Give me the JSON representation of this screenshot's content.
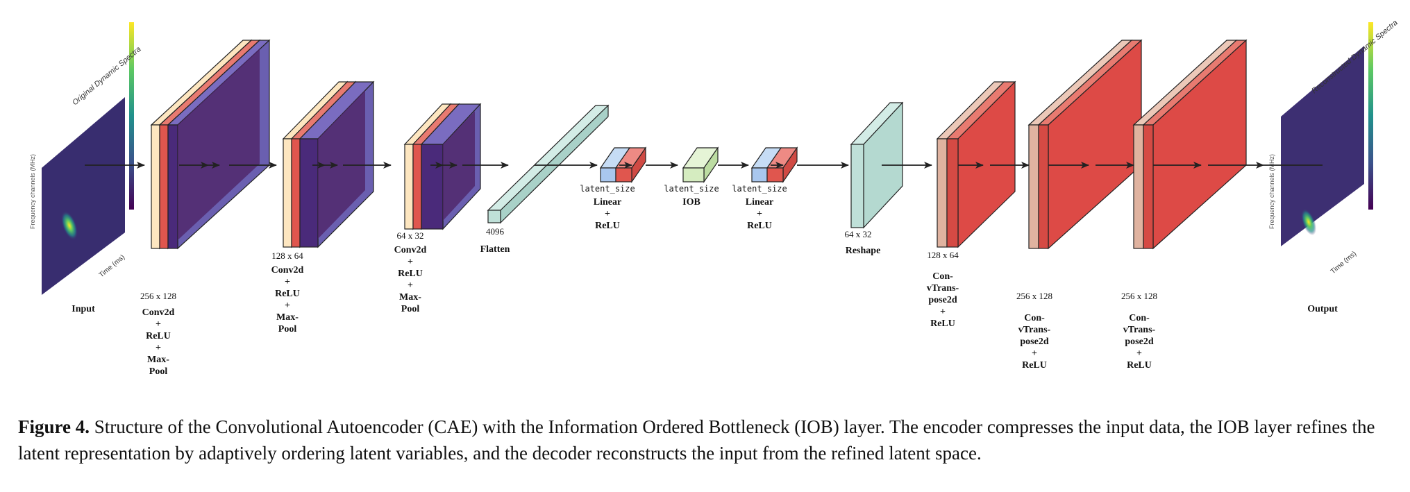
{
  "input": {
    "label": "Input",
    "plot_title": "Original Dynamic Spectra",
    "xlabel": "Time (ms)",
    "ylabel": "Frequency channels (MHz)"
  },
  "output": {
    "label": "Output",
    "plot_title": "Reconstructed Dynamic Spectra",
    "xlabel": "Time (ms)",
    "ylabel": "Frequency channels (MHz)"
  },
  "encoder": [
    {
      "dim": "256 x 128",
      "lines": [
        "Conv2d",
        "+",
        "ReLU",
        "+",
        "Max-",
        "Pool"
      ]
    },
    {
      "dim": "128 x 64",
      "lines": [
        "Conv2d",
        "+",
        "ReLU",
        "+",
        "Max-",
        "Pool"
      ]
    },
    {
      "dim": "64 x 32",
      "lines": [
        "Conv2d",
        "+",
        "ReLU",
        "+",
        "Max-",
        "Pool"
      ]
    }
  ],
  "flatten": {
    "dim": "4096",
    "label": "Flatten"
  },
  "bottleneck": [
    {
      "size": "latent_size",
      "lines": [
        "Linear",
        "+",
        "ReLU"
      ]
    },
    {
      "size": "latent_size",
      "lines": [
        "IOB"
      ]
    },
    {
      "size": "latent_size",
      "lines": [
        "Linear",
        "+",
        "ReLU"
      ]
    }
  ],
  "reshape": {
    "dim": "64 x 32",
    "label": "Reshape"
  },
  "decoder": [
    {
      "dim": "128 x 64",
      "lines": [
        "Con-",
        "vTrans-",
        "pose2d",
        "+",
        "ReLU"
      ]
    },
    {
      "dim": "256 x 128",
      "lines": [
        "Con-",
        "vTrans-",
        "pose2d",
        "+",
        "ReLU"
      ]
    },
    {
      "dim": "256 x 128",
      "lines": [
        "Con-",
        "vTrans-",
        "pose2d",
        "+",
        "ReLU"
      ]
    }
  ],
  "caption": {
    "figure": "Figure 4.",
    "text": "Structure of the Convolutional Autoencoder (CAE) with the Information Ordered Bottleneck (IOB) layer. The encoder compresses the input data, the IOB layer refines the latent representation by adaptively ordering latent variables, and the decoder reconstructs the input from the refined latent space."
  },
  "colors": {
    "conv_light": "#fde6c0",
    "conv_red": "#e0564e",
    "conv_purple": "#4a2a7a",
    "conv_purple_side": "#6a5fb0",
    "linear_blue": "#a9c7ee",
    "iob_green": "#d5ecc0",
    "flatten_teal": "#bfe0d8",
    "deconv_tan": "#e0b3a0",
    "deconv_red": "#dd4a46",
    "spectra_bg": "#3d2f72",
    "arrow": "#222222"
  }
}
